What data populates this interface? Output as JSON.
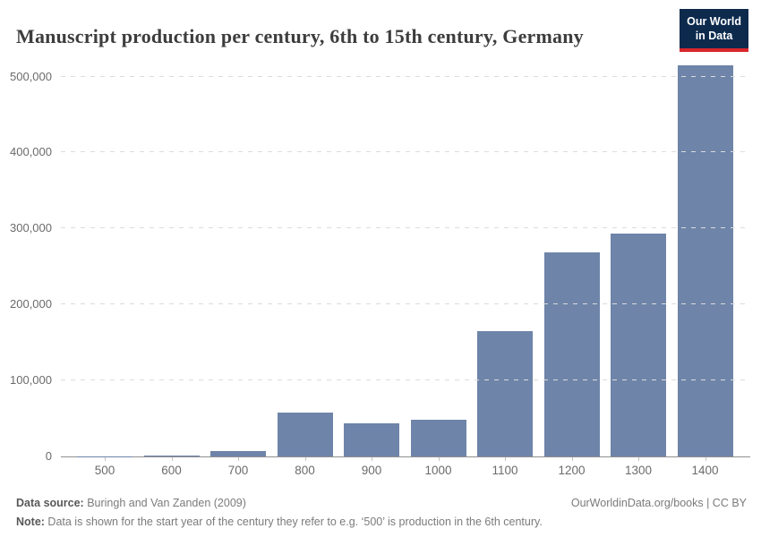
{
  "header": {
    "title": "Manuscript production per century, 6th to 15th century, Germany",
    "logo": {
      "line1": "Our World",
      "line2": "in Data"
    }
  },
  "chart_data": {
    "type": "bar",
    "title": "Manuscript production per century, 6th to 15th century, Germany",
    "categories": [
      "500",
      "600",
      "700",
      "800",
      "900",
      "1000",
      "1100",
      "1200",
      "1300",
      "1400"
    ],
    "values": [
      300,
      1600,
      6800,
      58000,
      43500,
      48500,
      165000,
      268000,
      293000,
      515000
    ],
    "xlabel": "",
    "ylabel": "",
    "ylim": [
      0,
      500000
    ],
    "yticks": [
      0,
      100000,
      200000,
      300000,
      400000,
      500000
    ],
    "ytick_labels": [
      "0",
      "100,000",
      "200,000",
      "300,000",
      "400,000",
      "500,000"
    ],
    "grid": "horizontal-dashed",
    "legend": "none",
    "bar_color": "#6e84a9",
    "gridline_color": "#dcdcdc",
    "axis_color": "#8f8f8f",
    "tick_text_color": "#6b6b6b"
  },
  "footer": {
    "datasource_label": "Data source:",
    "datasource_value": " Buringh and Van Zanden (2009)",
    "license": "OurWorldinData.org/books | CC BY",
    "note_label": "Note:",
    "note_value": " Data is shown for the start year of the century they refer to e.g. ‘500’ is production in the 6th century."
  }
}
